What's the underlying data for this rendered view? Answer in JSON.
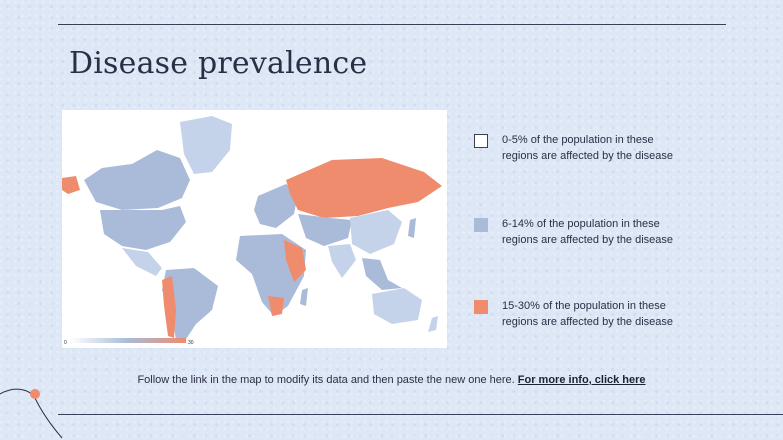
{
  "title": "Disease prevalence",
  "map": {
    "scale": {
      "min": "0",
      "max": "30"
    },
    "colors": {
      "low": "#ffffff",
      "mid": "#a9bbd8",
      "high": "#f08c6e"
    }
  },
  "legend": [
    {
      "line1": "0-5% of the population in these",
      "line2": "regions are affected by the disease",
      "color": "#ffffff"
    },
    {
      "line1": "6-14% of the population in these",
      "line2": "regions are affected by the disease",
      "color": "#a9bbd8"
    },
    {
      "line1": "15-30% of the population in these",
      "line2": "regions are affected by the disease",
      "color": "#f08c6e"
    }
  ],
  "footer": {
    "text": "Follow the link in the map to modify its data and then paste the new one here. ",
    "link": "For more info, click here"
  }
}
